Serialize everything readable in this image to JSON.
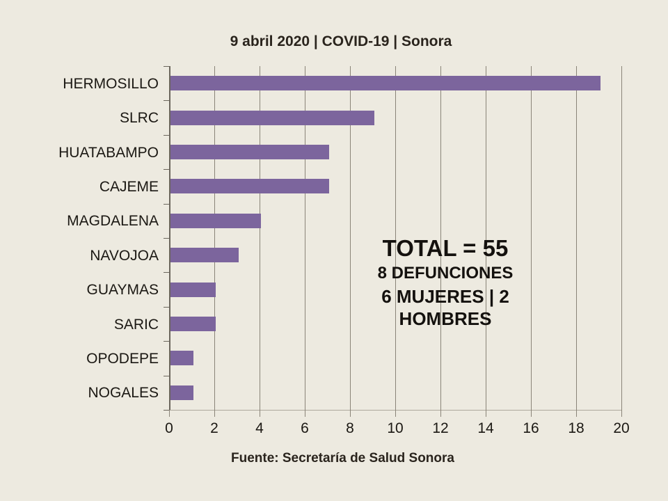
{
  "title": "9 abril 2020 | COVID-19 | Sonora",
  "annotation": {
    "total": "TOTAL = 55",
    "defunciones": "8 DEFUNCIONES",
    "genero": "6 MUJERES | 2 HOMBRES"
  },
  "footer": "Fuente: Secretaría de Salud Sonora",
  "colors": {
    "background": "#EDEAE0",
    "bar": "#7C659D",
    "gridline": "#8A8478",
    "y_axis": "#6B665C",
    "x_axis": "#ADA89C",
    "text": "#1B1813"
  },
  "chart_data": {
    "type": "bar",
    "orientation": "horizontal",
    "title": "9 abril 2020 | COVID-19 | Sonora",
    "categories": [
      "HERMOSILLO",
      "SLRC",
      "HUATABAMPO",
      "CAJEME",
      "MAGDALENA",
      "NAVOJOA",
      "GUAYMAS",
      "SARIC",
      "OPODEPE",
      "NOGALES"
    ],
    "values": [
      19,
      9,
      7,
      7,
      4,
      3,
      2,
      2,
      1,
      1
    ],
    "xlabel": "",
    "ylabel": "",
    "xlim": [
      0,
      20
    ],
    "xticks": [
      0,
      2,
      4,
      6,
      8,
      10,
      12,
      14,
      16,
      18,
      20
    ],
    "grid": "vertical-only",
    "legend": "none",
    "annotations": [
      "TOTAL = 55",
      "8 DEFUNCIONES",
      "6 MUJERES | 2 HOMBRES"
    ],
    "source": "Fuente: Secretaría de Salud Sonora"
  }
}
